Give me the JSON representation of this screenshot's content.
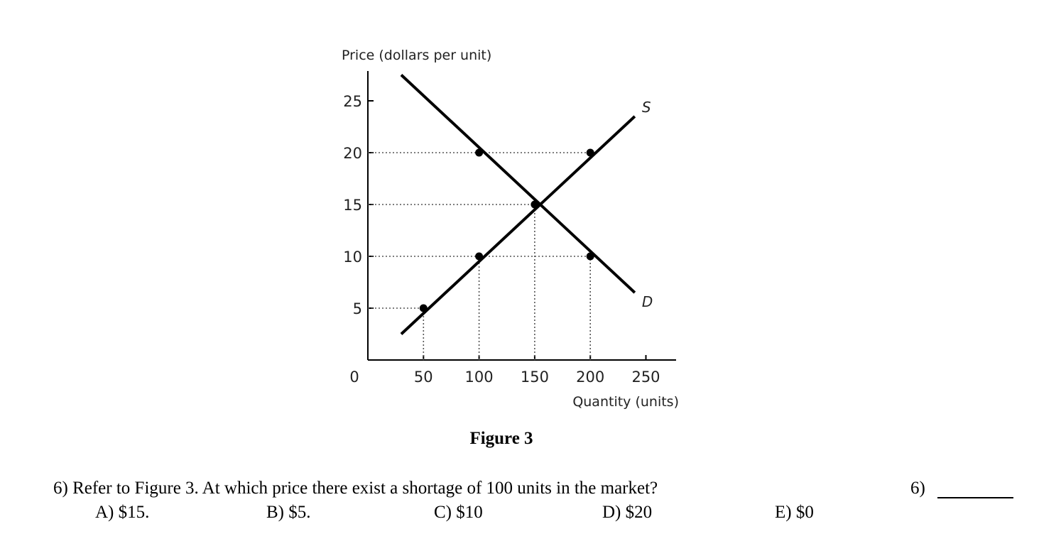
{
  "chart_data": {
    "type": "line",
    "ylabel": "Price (dollars per unit)",
    "xlabel": "Quantity (units)",
    "x_ticks": [
      0,
      50,
      100,
      150,
      200,
      250
    ],
    "y_ticks": [
      5,
      10,
      15,
      20,
      25
    ],
    "xlim": [
      0,
      280
    ],
    "ylim": [
      0,
      28
    ],
    "series": [
      {
        "name": "S",
        "x": [
          30,
          240
        ],
        "y": [
          2.5,
          23.5
        ]
      },
      {
        "name": "D",
        "x": [
          30,
          240
        ],
        "y": [
          27.5,
          6.5
        ]
      }
    ],
    "points": [
      {
        "x": 50,
        "y": 5
      },
      {
        "x": 100,
        "y": 10
      },
      {
        "x": 100,
        "y": 20
      },
      {
        "x": 150,
        "y": 15
      },
      {
        "x": 200,
        "y": 10
      },
      {
        "x": 200,
        "y": 20
      }
    ],
    "grid": false
  },
  "figure": {
    "caption": "Figure 3"
  },
  "question": {
    "text": "6) Refer to Figure 3. At which price there exist a shortage of 100 units in the market?",
    "number_label": "6)",
    "choices": [
      "A) $15.",
      "B) $5.",
      "C) $10",
      "D) $20",
      "E) $0"
    ]
  }
}
